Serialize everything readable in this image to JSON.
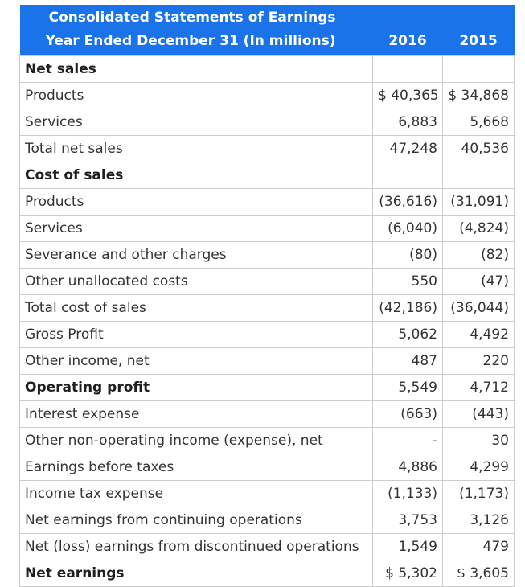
{
  "header": {
    "title": "Consolidated Statements of Earnings",
    "subtitle": "Year Ended December 31 (In millions)",
    "year1": "2016",
    "year2": "2015"
  },
  "rows": [
    {
      "label": "Net sales",
      "v2016": "",
      "v2015": "",
      "style": "section"
    },
    {
      "label": "Products",
      "v2016": "$ 40,365",
      "v2015": "$ 34,868",
      "style": "normal"
    },
    {
      "label": "Services",
      "v2016": "6,883",
      "v2015": "5,668",
      "style": "normal"
    },
    {
      "label": "Total net sales",
      "v2016": "47,248",
      "v2015": "40,536",
      "style": "normal"
    },
    {
      "label": "Cost of sales",
      "v2016": "",
      "v2015": "",
      "style": "section"
    },
    {
      "label": "Products",
      "v2016": "(36,616)",
      "v2015": "(31,091)",
      "style": "normal"
    },
    {
      "label": "Services",
      "v2016": "(6,040)",
      "v2015": "(4,824)",
      "style": "normal"
    },
    {
      "label": "Severance and other charges",
      "v2016": "(80)",
      "v2015": "(82)",
      "style": "normal"
    },
    {
      "label": "Other unallocated costs",
      "v2016": "550",
      "v2015": "(47)",
      "style": "normal"
    },
    {
      "label": "Total cost of sales",
      "v2016": "(42,186)",
      "v2015": "(36,044)",
      "style": "normal"
    },
    {
      "label": "Gross Profit",
      "v2016": "5,062",
      "v2015": "4,492",
      "style": "normal"
    },
    {
      "label": "Other income, net",
      "v2016": "487",
      "v2015": "220",
      "style": "normal"
    },
    {
      "label": "Operating profit",
      "v2016": "5,549",
      "v2015": "4,712",
      "style": "bold"
    },
    {
      "label": "Interest expense",
      "v2016": "(663)",
      "v2015": "(443)",
      "style": "normal"
    },
    {
      "label": "Other non-operating income (expense), net",
      "v2016": "-",
      "v2015": "30",
      "style": "normal"
    },
    {
      "label": "Earnings before taxes",
      "v2016": "4,886",
      "v2015": "4,299",
      "style": "normal"
    },
    {
      "label": "Income tax expense",
      "v2016": "(1,133)",
      "v2015": "(1,173)",
      "style": "normal"
    },
    {
      "label": "Net earnings from continuing operations",
      "v2016": "3,753",
      "v2015": "3,126",
      "style": "normal"
    },
    {
      "label": "Net (loss) earnings from discontinued operations",
      "v2016": "1,549",
      "v2015": "479",
      "style": "normal"
    },
    {
      "label": "Net earnings",
      "v2016": "$ 5,302",
      "v2015": "$ 3,605",
      "style": "bold"
    }
  ]
}
